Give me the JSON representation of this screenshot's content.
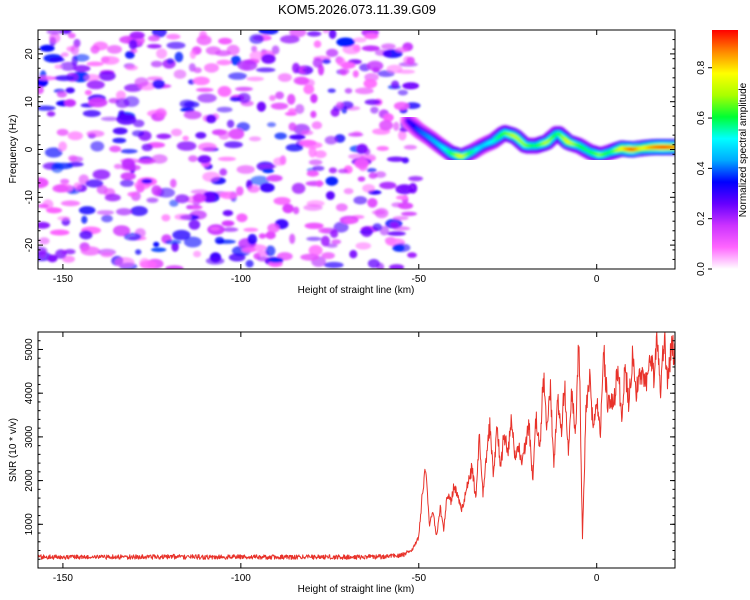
{
  "figure_title": "KOM5.2026.073.11.39.G09",
  "chart_data": [
    {
      "type": "heatmap",
      "title": "KOM5.2026.073.11.39.G09",
      "xlabel": "Height of straight line (km)",
      "ylabel": "Frequency (Hz)",
      "xlim": [
        -157,
        22
      ],
      "ylim": [
        -25,
        25
      ],
      "xticks": [
        -150,
        -100,
        -50,
        0
      ],
      "xtick_labels": [
        "-150",
        "-100",
        "-50",
        "0"
      ],
      "yticks": [
        -20,
        -10,
        0,
        10,
        20
      ],
      "ytick_labels": [
        "-20",
        "-10",
        "0",
        "10",
        "20"
      ],
      "noise_region_x": [
        -157,
        -53
      ],
      "ridge": {
        "x": [
          -53,
          -50,
          -47,
          -44,
          -41,
          -38,
          -35,
          -32,
          -29,
          -26,
          -23,
          -20,
          -17,
          -14,
          -11,
          -8,
          -5,
          -2,
          1,
          4,
          7,
          10,
          13,
          16,
          19,
          22
        ],
        "y": [
          6,
          4,
          2.5,
          0.8,
          -0.8,
          -1.5,
          -0.5,
          0.8,
          1.8,
          3.5,
          2.8,
          0.8,
          0.8,
          1.5,
          3.5,
          1.5,
          0.8,
          -0.5,
          -1.2,
          -0.5,
          0.2,
          0.0,
          0.3,
          0.5,
          0.5,
          0.5
        ],
        "amplitude": [
          0.3,
          0.4,
          0.45,
          0.5,
          0.6,
          0.8,
          0.6,
          0.5,
          0.55,
          0.65,
          0.75,
          0.7,
          0.6,
          0.75,
          0.6,
          0.8,
          0.65,
          0.6,
          0.7,
          0.6,
          0.8,
          0.95,
          0.8,
          0.9,
          0.95,
          0.9
        ]
      },
      "colorbar": {
        "label": "Normalized spectral amplitude",
        "range": [
          0.0,
          0.95
        ],
        "ticks": [
          0.0,
          0.2,
          0.4,
          0.6,
          0.8
        ],
        "tick_labels": [
          "0.0",
          "0.2",
          "0.4",
          "0.6",
          "0.8"
        ],
        "colormap": [
          "#ffffff",
          "#ff66ff",
          "#cc33ff",
          "#6600ff",
          "#0000ff",
          "#00aaff",
          "#00ffff",
          "#00ff33",
          "#aaff00",
          "#ffff00",
          "#ff8800",
          "#ff0000"
        ]
      }
    },
    {
      "type": "line",
      "xlabel": "Height of straight line (km)",
      "ylabel": "SNR (10 * v/v)",
      "xlim": [
        -157,
        22
      ],
      "ylim": [
        0,
        5400
      ],
      "xticks": [
        -150,
        -100,
        -50,
        0
      ],
      "xtick_labels": [
        "-150",
        "-100",
        "-50",
        "0"
      ],
      "yticks": [
        1000,
        2000,
        3000,
        4000,
        5000
      ],
      "ytick_labels": [
        "1000",
        "2000",
        "3000",
        "4000",
        "5000"
      ],
      "color": "#e8322a",
      "x": [
        -157,
        -150,
        -145,
        -140,
        -130,
        -120,
        -110,
        -100,
        -90,
        -80,
        -70,
        -60,
        -55,
        -52,
        -50,
        -49,
        -48,
        -47,
        -46,
        -45,
        -44,
        -43,
        -42,
        -41,
        -40,
        -38,
        -36,
        -35,
        -34,
        -33,
        -32,
        -31,
        -30,
        -29,
        -28,
        -27,
        -26,
        -25,
        -24,
        -23,
        -22,
        -21,
        -20,
        -19,
        -18,
        -17,
        -16,
        -15,
        -14,
        -13,
        -12,
        -11,
        -10,
        -9,
        -8,
        -7,
        -6,
        -5,
        -4.5,
        -4,
        -3,
        -2,
        -1,
        0,
        1,
        2,
        3,
        4,
        5,
        6,
        7,
        8,
        9,
        10,
        11,
        12,
        13,
        14,
        15,
        16,
        17,
        18,
        19,
        20,
        21,
        22
      ],
      "y": [
        250,
        250,
        250,
        250,
        250,
        260,
        250,
        250,
        250,
        250,
        250,
        260,
        280,
        400,
        700,
        1700,
        2350,
        1000,
        1300,
        700,
        1400,
        900,
        1700,
        1500,
        1900,
        1300,
        2000,
        2300,
        1600,
        3000,
        1700,
        2500,
        3300,
        2100,
        3300,
        2300,
        3100,
        2600,
        3400,
        2500,
        2800,
        2400,
        2900,
        3300,
        2000,
        3500,
        2700,
        4400,
        3300,
        4100,
        2300,
        3900,
        3100,
        4200,
        2700,
        4000,
        3100,
        5300,
        3000,
        700,
        3600,
        4300,
        3200,
        3800,
        3100,
        4900,
        3800,
        3700,
        3900,
        4600,
        3500,
        4600,
        3800,
        4800,
        4000,
        4500,
        4300,
        4300,
        4900,
        4400,
        5150,
        4100,
        5350,
        4200,
        5100,
        4900
      ]
    }
  ]
}
